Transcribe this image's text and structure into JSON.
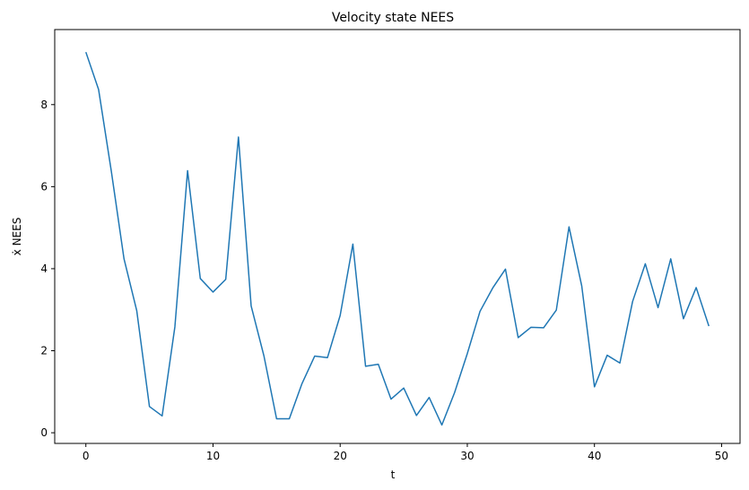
{
  "chart_data": {
    "type": "line",
    "title": "Velocity state NEES",
    "xlabel": "t",
    "ylabel": "ẋ  NEES",
    "xlim": [
      -2.45,
      51.45
    ],
    "ylim": [
      -0.26,
      9.83
    ],
    "xticks": [
      0,
      10,
      20,
      30,
      40,
      50
    ],
    "yticks": [
      0,
      2,
      4,
      6,
      8
    ],
    "grid": false,
    "legend": "none",
    "series": [
      {
        "color": "#1f77b4",
        "x": [
          0,
          1,
          2,
          3,
          4,
          5,
          6,
          7,
          8,
          9,
          10,
          11,
          12,
          13,
          14,
          15,
          16,
          17,
          18,
          19,
          20,
          21,
          22,
          23,
          24,
          25,
          26,
          27,
          28,
          29,
          30,
          31,
          32,
          33,
          34,
          35,
          36,
          37,
          38,
          39,
          40,
          41,
          42,
          43,
          44,
          45,
          46,
          47,
          48,
          49
        ],
        "y": [
          9.28,
          8.37,
          6.38,
          4.24,
          2.98,
          0.64,
          0.41,
          2.58,
          6.39,
          3.76,
          3.43,
          3.74,
          7.21,
          3.09,
          1.88,
          0.34,
          0.34,
          1.2,
          1.87,
          1.83,
          2.86,
          4.6,
          1.62,
          1.67,
          0.82,
          1.09,
          0.42,
          0.86,
          0.19,
          0.98,
          1.93,
          2.96,
          3.53,
          3.99,
          2.32,
          2.57,
          2.56,
          2.99,
          5.02,
          3.58,
          1.12,
          1.89,
          1.7,
          3.2,
          4.12,
          3.05,
          4.24,
          2.78,
          3.54,
          2.6
        ]
      }
    ]
  }
}
